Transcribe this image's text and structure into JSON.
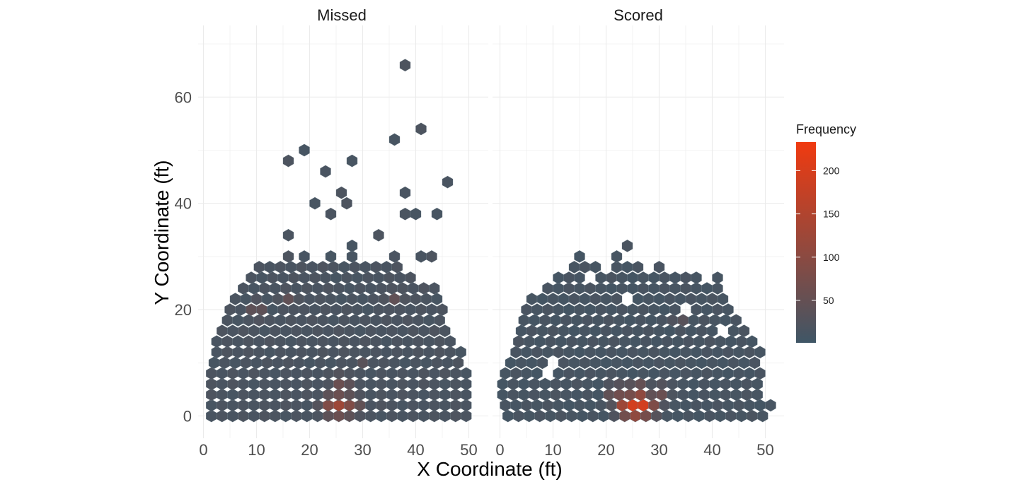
{
  "chart_data": {
    "type": "heatmap",
    "subtype": "hexbin",
    "title": "",
    "xlabel": "X Coordinate (ft)",
    "ylabel": "Y Coordinate (ft)",
    "xlim": [
      0,
      50
    ],
    "ylim": [
      0,
      66
    ],
    "x_ticks": [
      "0",
      "10",
      "20",
      "30",
      "40",
      "50"
    ],
    "y_ticks": [
      "0",
      "20",
      "40",
      "60"
    ],
    "grid": true,
    "legend_placement": "right",
    "legend": {
      "title": "Frequency",
      "ticks": [
        "50",
        "100",
        "150",
        "200"
      ],
      "range": [
        1,
        233
      ],
      "low_color": "#3f5666",
      "high_color": "#f03a10"
    },
    "hex_dx": 2.0,
    "panels": [
      {
        "name": "Missed",
        "x_range": [
          1.5,
          50.5
        ],
        "rows": [
          [
            0,
            1.5,
            50.5
          ],
          [
            2,
            1.5,
            50
          ],
          [
            4,
            1.5,
            50
          ],
          [
            6,
            1.5,
            49.5
          ],
          [
            8,
            1.5,
            49.5
          ],
          [
            10,
            2,
            49.5
          ],
          [
            12,
            2.5,
            49.5
          ],
          [
            14,
            2.5,
            48
          ],
          [
            16,
            3.5,
            47
          ],
          [
            18,
            4.5,
            46
          ],
          [
            20,
            5,
            45.5
          ],
          [
            22,
            6,
            45
          ],
          [
            24,
            7.5,
            43.5
          ],
          [
            26,
            9,
            40
          ],
          [
            28,
            10.5,
            38
          ]
        ],
        "holes": [
          [
            4,
            3
          ],
          [
            6,
            5
          ],
          [
            10,
            46.5
          ],
          [
            10,
            44.5
          ],
          [
            14,
            41.5
          ],
          [
            16,
            41
          ]
        ],
        "extras": [
          [
            30,
            16
          ],
          [
            30,
            19
          ],
          [
            30,
            24
          ],
          [
            30,
            28
          ],
          [
            30,
            36
          ],
          [
            30,
            41
          ],
          [
            30,
            43
          ],
          [
            32,
            28
          ],
          [
            34,
            16
          ],
          [
            34,
            33
          ],
          [
            38,
            24
          ],
          [
            38,
            38
          ],
          [
            38,
            40
          ],
          [
            38,
            44
          ],
          [
            40,
            21
          ],
          [
            40,
            27
          ],
          [
            42,
            26
          ],
          [
            42,
            38
          ],
          [
            46,
            23
          ],
          [
            48,
            16
          ],
          [
            48,
            28
          ],
          [
            50,
            19
          ],
          [
            52,
            36
          ],
          [
            54,
            41
          ],
          [
            44,
            46
          ],
          [
            66,
            38
          ]
        ],
        "hotspots": [
          {
            "x": 26,
            "y": 2,
            "value": 130
          },
          {
            "x": 24,
            "y": 2,
            "value": 90
          },
          {
            "x": 28,
            "y": 2,
            "value": 70
          },
          {
            "x": 26,
            "y": 6,
            "value": 60
          },
          {
            "x": 10,
            "y": 20,
            "value": 50
          },
          {
            "x": 16,
            "y": 22,
            "value": 45
          },
          {
            "x": 36,
            "y": 22,
            "value": 45
          },
          {
            "x": 30,
            "y": 10,
            "value": 35
          }
        ],
        "base_value": 12
      },
      {
        "name": "Scored",
        "x_range": [
          1.5,
          51.5
        ],
        "rows": [
          [
            0,
            1.5,
            50.5
          ],
          [
            2,
            1,
            51.5
          ],
          [
            4,
            0.5,
            50
          ],
          [
            6,
            0.5,
            50
          ],
          [
            8,
            1,
            50
          ],
          [
            10,
            2,
            49
          ],
          [
            12,
            3,
            49
          ],
          [
            14,
            3.5,
            48
          ],
          [
            16,
            4,
            47
          ],
          [
            18,
            4.5,
            45.5
          ],
          [
            20,
            5,
            44
          ],
          [
            22,
            6,
            43
          ],
          [
            24,
            9,
            41
          ],
          [
            26,
            11,
            38
          ],
          [
            28,
            14,
            27
          ]
        ],
        "holes": [
          [
            0,
            5
          ],
          [
            2,
            10
          ],
          [
            4,
            6
          ],
          [
            6,
            35
          ],
          [
            8,
            9
          ],
          [
            10,
            10
          ],
          [
            10,
            43
          ],
          [
            12,
            42
          ],
          [
            14,
            43
          ],
          [
            16,
            11
          ],
          [
            16,
            42
          ],
          [
            18,
            21
          ],
          [
            18,
            39
          ],
          [
            20,
            32
          ],
          [
            20,
            35
          ],
          [
            20,
            38
          ],
          [
            22,
            24
          ],
          [
            24,
            20
          ],
          [
            26,
            17
          ],
          [
            28,
            20
          ],
          [
            6,
            45
          ],
          [
            8,
            45.5
          ],
          [
            10,
            45.5
          ]
        ],
        "extras": [
          [
            28,
            30
          ],
          [
            30,
            15
          ],
          [
            30,
            22
          ],
          [
            32,
            24
          ],
          [
            26,
            41
          ]
        ],
        "hotspots": [
          {
            "x": 26,
            "y": 2,
            "value": 233
          },
          {
            "x": 24,
            "y": 2,
            "value": 150
          },
          {
            "x": 28,
            "y": 2,
            "value": 100
          },
          {
            "x": 26,
            "y": 4,
            "value": 110
          },
          {
            "x": 22,
            "y": 4,
            "value": 70
          },
          {
            "x": 30,
            "y": 4,
            "value": 60
          },
          {
            "x": 34,
            "y": 18,
            "value": 35
          }
        ],
        "base_value": 8
      }
    ]
  }
}
